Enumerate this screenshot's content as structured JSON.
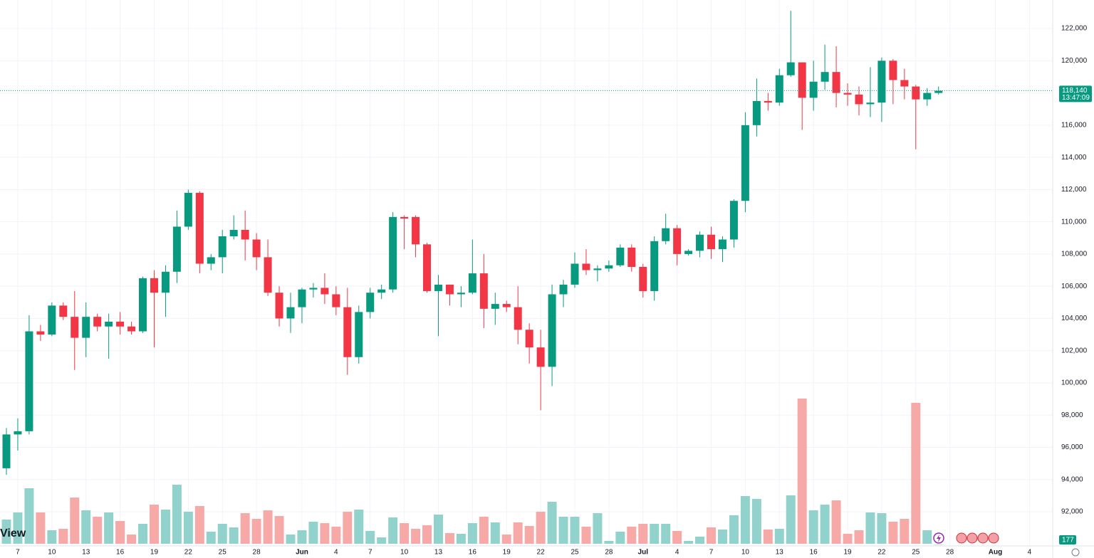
{
  "chart_data": {
    "type": "candlestick",
    "categories": [
      null,
      "7",
      null,
      null,
      "10",
      null,
      null,
      "13",
      null,
      null,
      "16",
      null,
      null,
      "19",
      null,
      null,
      "22",
      null,
      null,
      "25",
      null,
      null,
      "28",
      null,
      null,
      null,
      "Jun",
      null,
      null,
      "4",
      null,
      null,
      "7",
      null,
      null,
      "10",
      null,
      null,
      "13",
      null,
      null,
      "16",
      null,
      null,
      "19",
      null,
      null,
      "22",
      null,
      null,
      "25",
      null,
      null,
      "28",
      null,
      null,
      "Jul",
      null,
      null,
      "4",
      null,
      null,
      "7",
      null,
      null,
      "10",
      null,
      null,
      "13",
      null,
      null,
      "16",
      null,
      null,
      "19",
      null,
      null,
      "22",
      null,
      null,
      "25",
      null,
      null,
      "28",
      null,
      null,
      null,
      "Aug",
      null,
      null,
      "4",
      null
    ],
    "open": [
      94700,
      96800,
      97000,
      103200,
      103000,
      104800,
      104100,
      102800,
      104100,
      103500,
      103800,
      103500,
      103200,
      106500,
      105600,
      106900,
      109700,
      111800,
      107400,
      107800,
      109100,
      109500,
      108900,
      107800,
      105600,
      104000,
      104700,
      105800,
      105900,
      105500,
      104700,
      101600,
      104400,
      105600,
      105800,
      110300,
      110300,
      108600,
      105700,
      106100,
      105500,
      105600,
      106800,
      104600,
      104900,
      104700,
      103300,
      102200,
      101000,
      105500,
      106100,
      107400,
      107000,
      107100,
      107300,
      108400,
      107200,
      105700,
      108800,
      109600,
      108000,
      108200,
      109200,
      108300,
      108900,
      111300,
      116000,
      117500,
      117400,
      119100,
      119900,
      117700,
      118700,
      119300,
      118000,
      117900,
      117300,
      117400,
      120000,
      118800,
      118400,
      117600,
      118000,
      null,
      null,
      null,
      null,
      null,
      null,
      null,
      null,
      null
    ],
    "high": [
      97200,
      97800,
      104200,
      103600,
      105000,
      105000,
      105700,
      105000,
      104300,
      104300,
      104400,
      103800,
      106600,
      107000,
      107300,
      110700,
      112000,
      111900,
      108000,
      109500,
      110400,
      110700,
      109300,
      108900,
      106000,
      105600,
      105900,
      106200,
      106800,
      106000,
      105900,
      104800,
      105900,
      106100,
      110600,
      110400,
      110400,
      108700,
      106700,
      106100,
      106000,
      108900,
      108000,
      105600,
      105100,
      106000,
      103700,
      103300,
      106100,
      106400,
      108100,
      108300,
      107300,
      107600,
      108600,
      108600,
      107400,
      109100,
      110500,
      109800,
      108300,
      109400,
      109700,
      109100,
      111400,
      116800,
      118900,
      118000,
      119500,
      123100,
      119900,
      120000,
      121000,
      120900,
      118600,
      118400,
      119600,
      120200,
      120100,
      119500,
      118500,
      118300,
      118400,
      null,
      null,
      null,
      null,
      null,
      null,
      null,
      null,
      null
    ],
    "low": [
      94300,
      95800,
      96800,
      102600,
      102900,
      103900,
      100800,
      101600,
      103200,
      101500,
      103000,
      103000,
      103100,
      102200,
      104100,
      106200,
      109500,
      106800,
      107000,
      106800,
      108900,
      107600,
      107000,
      105400,
      103500,
      103100,
      103700,
      105300,
      104900,
      104200,
      100500,
      101200,
      104000,
      105200,
      105600,
      108300,
      107800,
      105600,
      102900,
      104800,
      104700,
      105500,
      103400,
      103600,
      104400,
      102400,
      101200,
      98300,
      99800,
      104700,
      105900,
      106700,
      106300,
      106900,
      107200,
      106900,
      105300,
      105100,
      108600,
      107300,
      107900,
      107800,
      107700,
      107500,
      108400,
      110600,
      115300,
      116900,
      117200,
      119000,
      115700,
      116900,
      118200,
      117100,
      117200,
      116600,
      116500,
      116200,
      117300,
      117600,
      114500,
      117200,
      117900,
      null,
      null,
      null,
      null,
      null,
      null,
      null,
      null,
      null
    ],
    "close": [
      96800,
      97000,
      103200,
      103000,
      104800,
      104100,
      102800,
      104100,
      103500,
      103800,
      103500,
      103200,
      106500,
      105600,
      106900,
      109700,
      111800,
      107400,
      107800,
      109100,
      109500,
      108900,
      107800,
      105600,
      104000,
      104700,
      105800,
      105900,
      105500,
      104700,
      101600,
      104400,
      105600,
      105800,
      110300,
      110200,
      108600,
      105700,
      106100,
      105500,
      105600,
      106800,
      104600,
      104900,
      104700,
      103300,
      102200,
      101000,
      105500,
      106100,
      107400,
      107000,
      107100,
      107300,
      108400,
      107200,
      105700,
      108800,
      109600,
      108000,
      108200,
      109200,
      108300,
      108900,
      111300,
      116000,
      117500,
      117400,
      119100,
      119900,
      117700,
      118700,
      119300,
      118000,
      117900,
      117300,
      117400,
      120000,
      118800,
      118400,
      117600,
      118000,
      118140,
      null,
      null,
      null,
      null,
      null,
      null,
      null,
      null,
      null
    ],
    "volume": [
      3700,
      4700,
      8100,
      4700,
      2200,
      2400,
      6800,
      5000,
      4100,
      4700,
      3500,
      1600,
      3100,
      5800,
      5100,
      8600,
      4800,
      5600,
      2000,
      3100,
      2600,
      4600,
      3800,
      5000,
      4200,
      1600,
      2200,
      3400,
      3200,
      2700,
      4800,
      5100,
      2100,
      1200,
      4000,
      3200,
      2400,
      2900,
      4400,
      1800,
      1700,
      3200,
      4100,
      3300,
      1600,
      3300,
      2800,
      4800,
      6200,
      4100,
      4100,
      2700,
      4600,
      700,
      2000,
      2700,
      3100,
      3100,
      3100,
      2100,
      700,
      1300,
      2600,
      2300,
      4300,
      7000,
      6600,
      2300,
      2400,
      7100,
      20700,
      5000,
      5800,
      6400,
      1700,
      2200,
      4700,
      4600,
      3400,
      3800,
      20100,
      2200,
      177,
      null,
      null,
      null,
      null,
      null,
      null,
      null,
      null,
      null
    ],
    "volume_lim": [
      0,
      76700
    ],
    "up_color": "#089981",
    "down_color": "#f23645",
    "up_volume_color": "#92d2cc",
    "down_volume_color": "#f7a9a7",
    "ylim": [
      89880,
      123770
    ],
    "yticks": [
      {
        "value": 92000,
        "label": "92,000"
      },
      {
        "value": 94000,
        "label": "94,000"
      },
      {
        "value": 96000,
        "label": "96,000"
      },
      {
        "value": 98000,
        "label": "98,000"
      },
      {
        "value": 100000,
        "label": "100,000"
      },
      {
        "value": 102000,
        "label": "102,000"
      },
      {
        "value": 104000,
        "label": "104,000"
      },
      {
        "value": 106000,
        "label": "106,000"
      },
      {
        "value": 108000,
        "label": "108,000"
      },
      {
        "value": 110000,
        "label": "110,000"
      },
      {
        "value": 112000,
        "label": "112,000"
      },
      {
        "value": 114000,
        "label": "114,000"
      },
      {
        "value": 116000,
        "label": "116,000"
      },
      {
        "value": 118000,
        "label": "118,000"
      },
      {
        "value": 120000,
        "label": "120,000"
      },
      {
        "value": 122000,
        "label": "122,000"
      }
    ],
    "last_price": {
      "value": 118140,
      "label": "118,140"
    },
    "countdown": "13:47:09",
    "grid": true,
    "watermark": "View"
  }
}
